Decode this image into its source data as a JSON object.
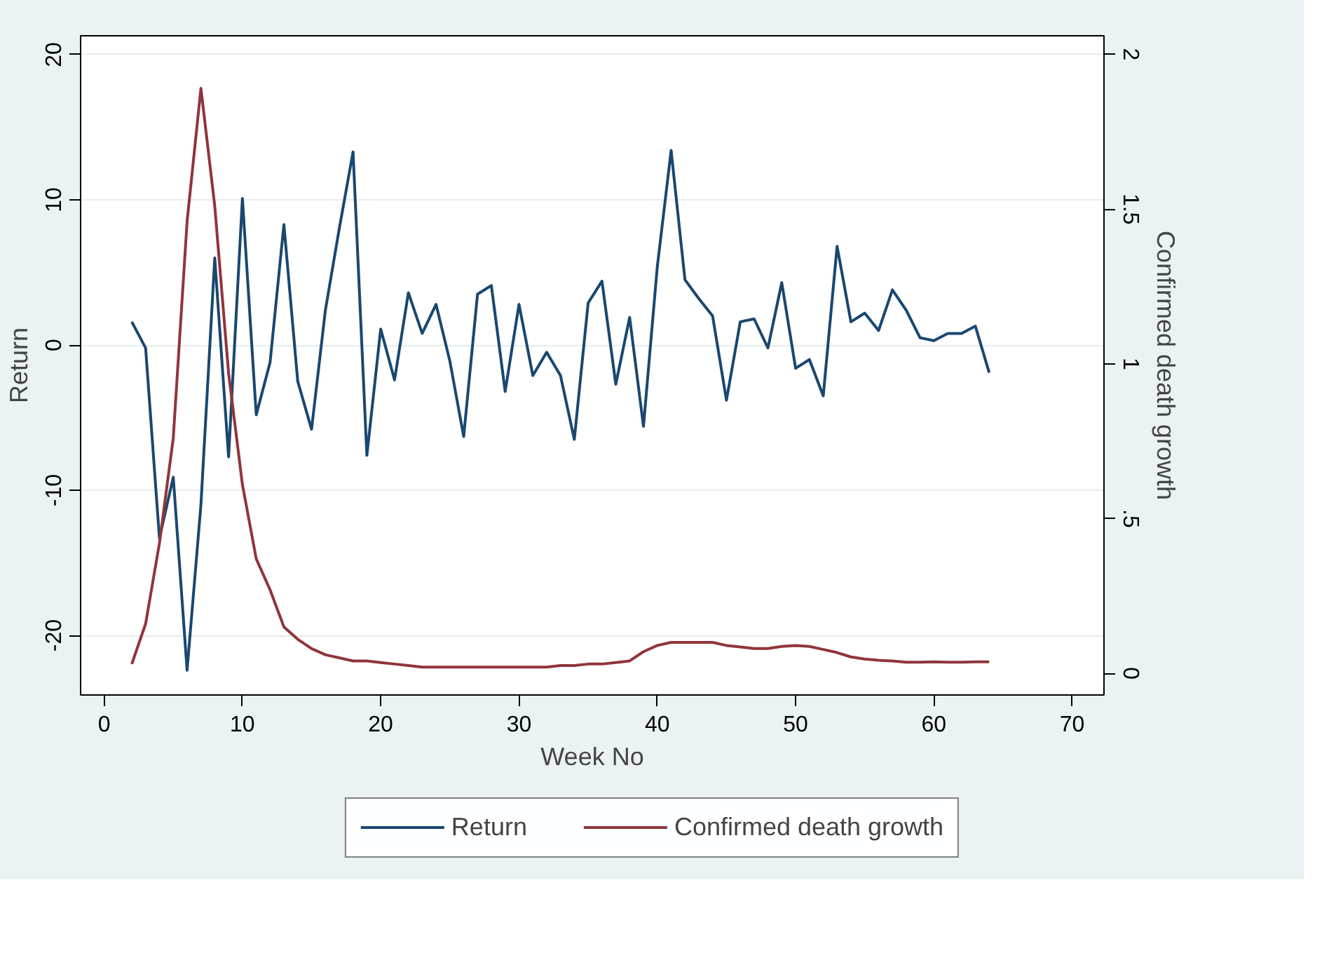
{
  "chart_data": {
    "type": "line",
    "xlabel": "Week No",
    "ylabel": "Return",
    "y2label": "Confirmed death growth",
    "x": [
      2,
      3,
      4,
      5,
      6,
      7,
      8,
      9,
      10,
      11,
      12,
      13,
      14,
      15,
      16,
      17,
      18,
      19,
      20,
      21,
      22,
      23,
      24,
      25,
      26,
      27,
      28,
      29,
      30,
      31,
      32,
      33,
      34,
      35,
      36,
      37,
      38,
      39,
      40,
      41,
      42,
      43,
      44,
      45,
      46,
      47,
      48,
      49,
      50,
      51,
      52,
      53,
      54,
      55,
      56,
      57,
      58,
      59,
      60,
      61,
      62,
      63,
      64
    ],
    "series": [
      {
        "name": "Return",
        "color": "#1a476f",
        "values": [
          1.6,
          -0.2,
          -13.3,
          -9.1,
          -22.4,
          -11,
          6.0,
          -7.7,
          10.1,
          -4.8,
          -1.2,
          8.3,
          -2.5,
          -5.8,
          2.4,
          8,
          13.3,
          -7.6,
          1.1,
          -2.4,
          3.6,
          0.8,
          2.8,
          -1.1,
          -6.3,
          3.5,
          4.1,
          -3.2,
          2.8,
          -2.1,
          -0.5,
          -2.1,
          -6.5,
          2.9,
          4.4,
          -2.7,
          1.9,
          -5.6,
          5.4,
          13.4,
          4.5,
          3.2,
          2.0,
          -3.8,
          1.6,
          1.8,
          -0.2,
          4.3,
          -1.6,
          -1.0,
          -3.5,
          6.8,
          1.6,
          2.2,
          1.0,
          3.8,
          2.4,
          0.5,
          0.3,
          0.8,
          0.8,
          1.3,
          -1.9
        ]
      },
      {
        "name": "Confirmed death growth",
        "color": "#90353b",
        "axis": "y2",
        "values": [
          0.03,
          0.16,
          0.42,
          0.76,
          1.46,
          1.89,
          1.51,
          0.97,
          0.61,
          0.37,
          0.27,
          0.15,
          0.11,
          0.08,
          0.06,
          0.05,
          0.04,
          0.04,
          0.035,
          0.03,
          0.025,
          0.02,
          0.02,
          0.02,
          0.02,
          0.02,
          0.02,
          0.02,
          0.02,
          0.02,
          0.02,
          0.025,
          0.025,
          0.03,
          0.03,
          0.035,
          0.04,
          0.07,
          0.09,
          0.1,
          0.1,
          0.1,
          0.1,
          0.09,
          0.085,
          0.08,
          0.08,
          0.087,
          0.09,
          0.087,
          0.077,
          0.067,
          0.053,
          0.046,
          0.042,
          0.04,
          0.036,
          0.036,
          0.037,
          0.036,
          0.036,
          0.037,
          0.037
        ]
      }
    ],
    "xlim": [
      -1.7,
      72.3
    ],
    "xticks": [
      0,
      10,
      20,
      30,
      40,
      50,
      60,
      70
    ],
    "ylim": [
      -24.1,
      21.3
    ],
    "yticks": [
      -20,
      -10,
      0,
      10,
      20
    ],
    "y2lim": [
      -0.07,
      2.06
    ],
    "y2ticks": [
      0,
      {
        "value": 0.5,
        "label": ".5"
      },
      1,
      {
        "value": 1.5,
        "label": "1.5"
      },
      2
    ],
    "grid": "y",
    "legend": "bottom",
    "line_style": "solid"
  }
}
